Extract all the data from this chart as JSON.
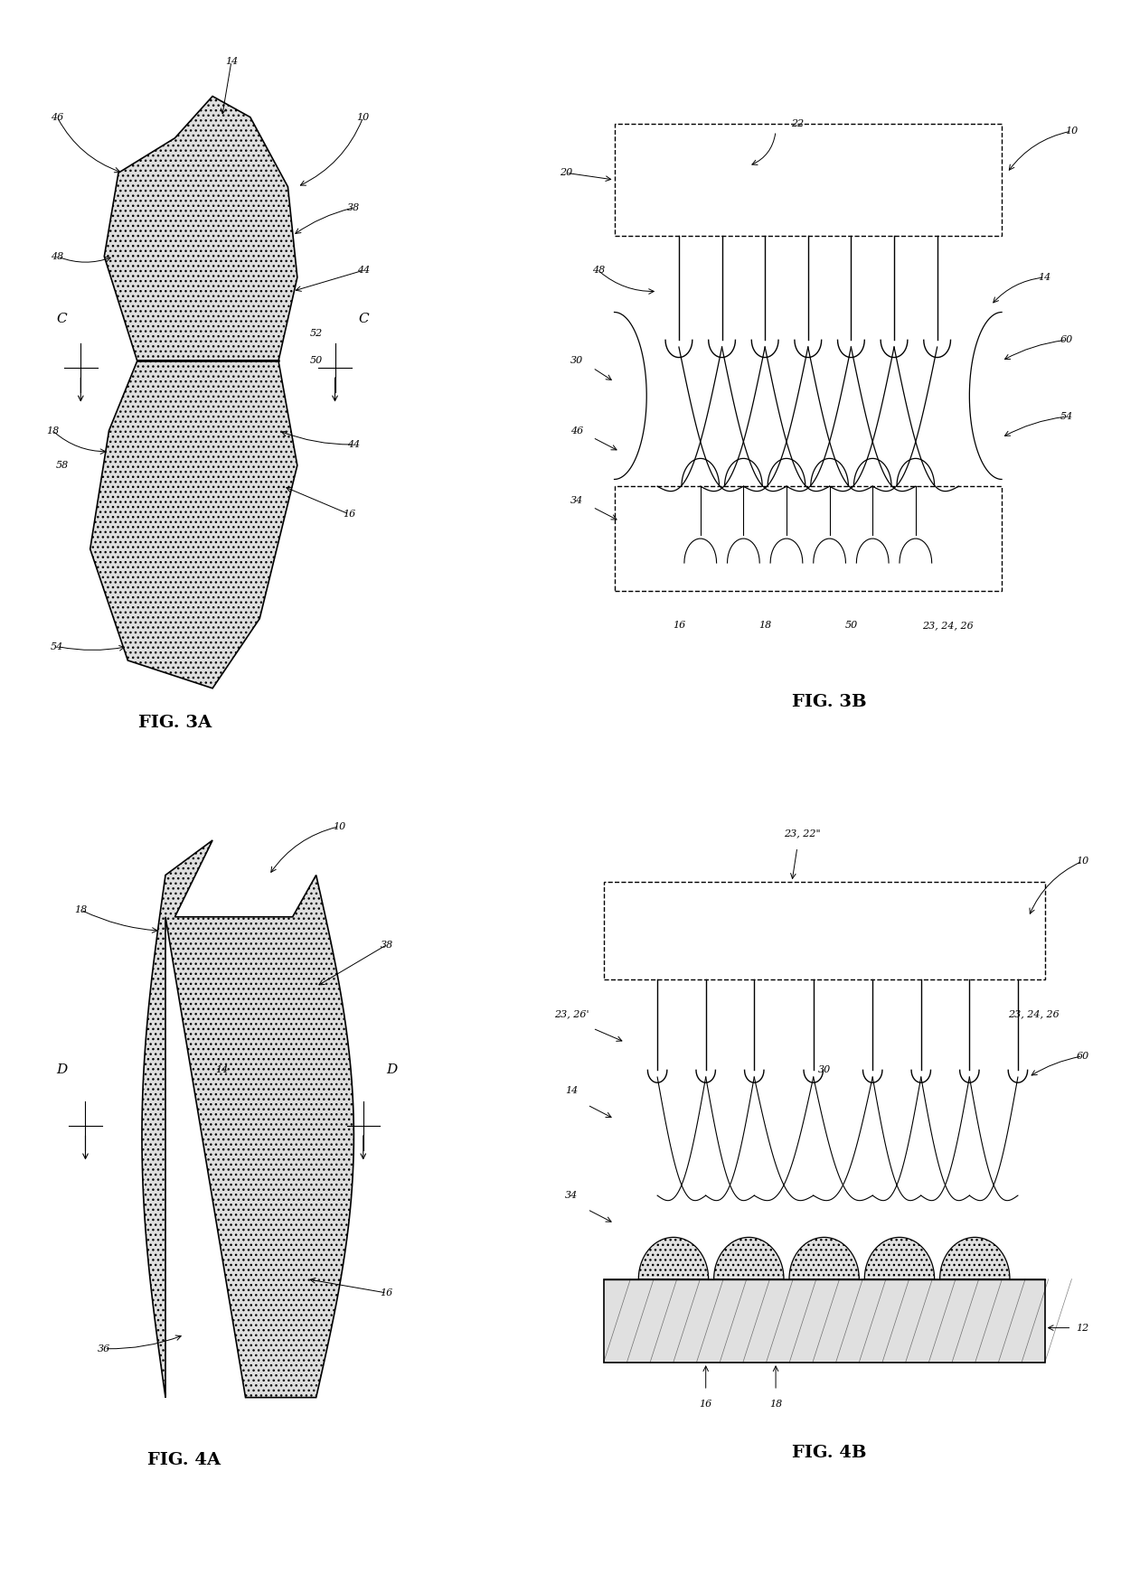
{
  "fig_labels": [
    "FIG. 3A",
    "FIG. 3B",
    "FIG. 4A",
    "FIG. 4B"
  ],
  "bg_color": "#ffffff",
  "line_color": "#000000",
  "font_size_label": 14,
  "font_size_ref": 8,
  "fig_size": [
    12.4,
    17.52
  ],
  "dpi": 100
}
